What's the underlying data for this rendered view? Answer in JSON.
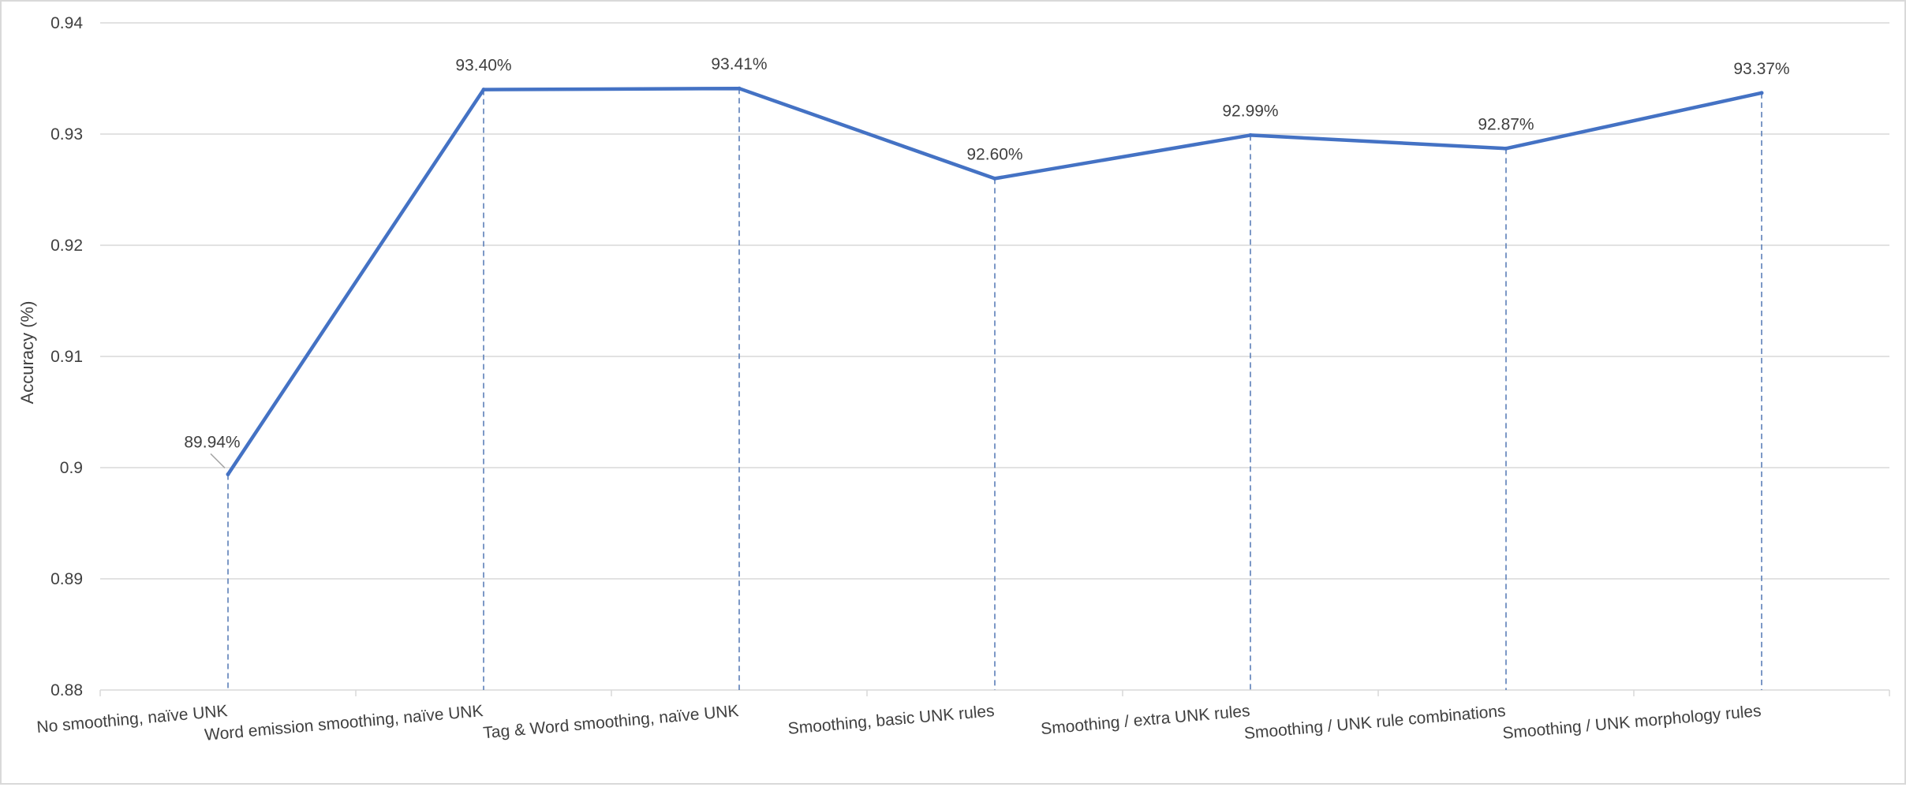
{
  "chart_data": {
    "type": "line",
    "title": "",
    "xlabel": "",
    "ylabel": "Accuracy (%)",
    "ylim": [
      0.88,
      0.94
    ],
    "yticks": [
      "0.94",
      "0.93",
      "0.92",
      "0.91",
      "0.9",
      "0.89",
      "0.88"
    ],
    "ytick_values": [
      0.94,
      0.93,
      0.92,
      0.91,
      0.9,
      0.89,
      0.88
    ],
    "categories": [
      "No smoothing, naïve UNK",
      "Word emission smoothing,  naïve UNK",
      "Tag & Word smoothing, naïve UNK",
      "Smoothing, basic UNK rules",
      "Smoothing / extra UNK rules",
      "Smoothing / UNK rule combinations",
      "Smoothing / UNK morphology rules"
    ],
    "series": [
      {
        "values": [
          0.8994,
          0.934,
          0.9341,
          0.926,
          0.9299,
          0.9287,
          0.9337
        ],
        "labels": [
          "89.94%",
          "93.40%",
          "93.41%",
          "92.60%",
          "92.99%",
          "92.87%",
          "93.37%"
        ],
        "color": "#4472C4"
      }
    ],
    "grid": true,
    "drop_lines": true,
    "legend": "none"
  }
}
